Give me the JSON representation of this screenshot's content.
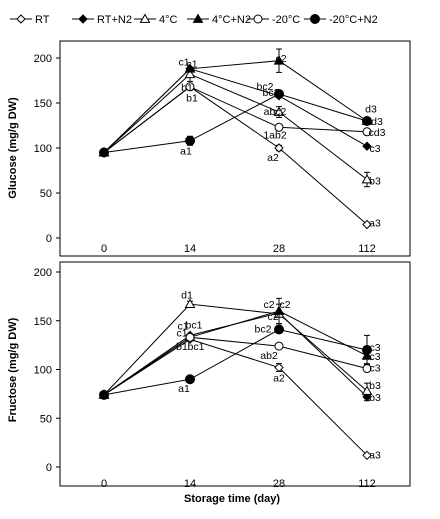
{
  "legend": [
    {
      "name": "RT",
      "marker": "diamond-open"
    },
    {
      "name": "RT+N2",
      "marker": "diamond-filled"
    },
    {
      "name": "4°C",
      "marker": "triangle-open"
    },
    {
      "name": "4°C+N2",
      "marker": "triangle-filled"
    },
    {
      "name": "-20°C",
      "marker": "circle-open"
    },
    {
      "name": "-20°C+N2",
      "marker": "circle-filled"
    }
  ],
  "xlabel": "Storage time (day)",
  "chart_data": [
    {
      "type": "line",
      "title": "",
      "xlabel": "",
      "ylabel": "Glucose (mg/g DW)",
      "categories": [
        "0",
        "14",
        "28",
        "112"
      ],
      "ylim": [
        0,
        200
      ],
      "yticks": [
        0,
        50,
        100,
        150,
        200
      ],
      "series": [
        {
          "name": "RT",
          "values": [
            95,
            168,
            100,
            15
          ],
          "errors": [
            0,
            0,
            3,
            0
          ]
        },
        {
          "name": "RT+N2",
          "values": [
            95,
            188,
            158,
            102
          ],
          "errors": [
            0,
            0,
            0,
            0
          ]
        },
        {
          "name": "4°C",
          "values": [
            95,
            182,
            140,
            65
          ],
          "errors": [
            0,
            8,
            6,
            8
          ]
        },
        {
          "name": "4°C+N2",
          "values": [
            95,
            188,
            197,
            130
          ],
          "errors": [
            0,
            0,
            13,
            0
          ]
        },
        {
          "name": "-20°C",
          "values": [
            95,
            168,
            123,
            118
          ],
          "errors": [
            0,
            0,
            3,
            2
          ]
        },
        {
          "name": "-20°C+N2",
          "values": [
            95,
            108,
            160,
            130
          ],
          "errors": [
            0,
            5,
            0,
            3
          ]
        }
      ],
      "annotations": [
        {
          "text": "c1",
          "x": "14",
          "y": 196
        },
        {
          "text": "c1",
          "x": "14",
          "y": 194
        },
        {
          "text": "b1",
          "x": "14",
          "y": 168
        },
        {
          "text": "b1",
          "x": "14",
          "y": 156
        },
        {
          "text": "a1",
          "x": "14",
          "y": 97
        },
        {
          "text": "c2",
          "x": "28",
          "y": 200
        },
        {
          "text": "bc2",
          "x": "28",
          "y": 169
        },
        {
          "text": "bc2",
          "x": "28",
          "y": 162
        },
        {
          "text": "abc2",
          "x": "28",
          "y": 141
        },
        {
          "text": "1ab2",
          "x": "28",
          "y": 115
        },
        {
          "text": "a2",
          "x": "28",
          "y": 90
        },
        {
          "text": "d3",
          "x": "112",
          "y": 144
        },
        {
          "text": "d3",
          "x": "112",
          "y": 130
        },
        {
          "text": "cd3",
          "x": "112",
          "y": 118
        },
        {
          "text": "c3",
          "x": "112",
          "y": 100
        },
        {
          "text": "b3",
          "x": "112",
          "y": 64
        },
        {
          "text": "a3",
          "x": "112",
          "y": 17
        }
      ]
    },
    {
      "type": "line",
      "title": "",
      "xlabel": "Storage time (day)",
      "ylabel": "Fructose (mg/g DW)",
      "categories": [
        "0",
        "14",
        "28",
        "112"
      ],
      "ylim": [
        0,
        200
      ],
      "yticks": [
        0,
        50,
        100,
        150,
        200
      ],
      "series": [
        {
          "name": "RT",
          "values": [
            74,
            131,
            102,
            12
          ],
          "errors": [
            0,
            0,
            4,
            0
          ]
        },
        {
          "name": "RT+N2",
          "values": [
            74,
            135,
            158,
            72
          ],
          "errors": [
            0,
            0,
            0,
            4
          ]
        },
        {
          "name": "4°C",
          "values": [
            74,
            167,
            157,
            78
          ],
          "errors": [
            0,
            3,
            10,
            8
          ]
        },
        {
          "name": "4°C+N2",
          "values": [
            74,
            133,
            160,
            114
          ],
          "errors": [
            0,
            0,
            13,
            8
          ]
        },
        {
          "name": "-20°C",
          "values": [
            74,
            133,
            124,
            101
          ],
          "errors": [
            0,
            0,
            3,
            3
          ]
        },
        {
          "name": "-20°C+N2",
          "values": [
            74,
            90,
            141,
            120
          ],
          "errors": [
            0,
            0,
            0,
            15
          ]
        }
      ],
      "annotations": [
        {
          "text": "d1",
          "x": "14",
          "y": 177
        },
        {
          "text": "c1",
          "x": "14",
          "y": 145
        },
        {
          "text": "bc1",
          "x": "14",
          "y": 146
        },
        {
          "text": "c1",
          "x": "14",
          "y": 138
        },
        {
          "text": "b1",
          "x": "14",
          "y": 124
        },
        {
          "text": "bc1",
          "x": "14",
          "y": 124
        },
        {
          "text": "a1",
          "x": "14",
          "y": 81
        },
        {
          "text": "c2",
          "x": "28",
          "y": 167
        },
        {
          "text": "c2",
          "x": "28",
          "y": 167
        },
        {
          "text": "c2",
          "x": "28",
          "y": 155
        },
        {
          "text": "bc2",
          "x": "28",
          "y": 142
        },
        {
          "text": "ab2",
          "x": "28",
          "y": 115
        },
        {
          "text": "a2",
          "x": "28",
          "y": 92
        },
        {
          "text": "c3",
          "x": "112",
          "y": 123
        },
        {
          "text": "c3",
          "x": "112",
          "y": 114
        },
        {
          "text": "c3",
          "x": "112",
          "y": 102
        },
        {
          "text": "b3",
          "x": "112",
          "y": 84
        },
        {
          "text": "b3",
          "x": "112",
          "y": 72
        },
        {
          "text": "a3",
          "x": "112",
          "y": 13
        }
      ]
    }
  ]
}
